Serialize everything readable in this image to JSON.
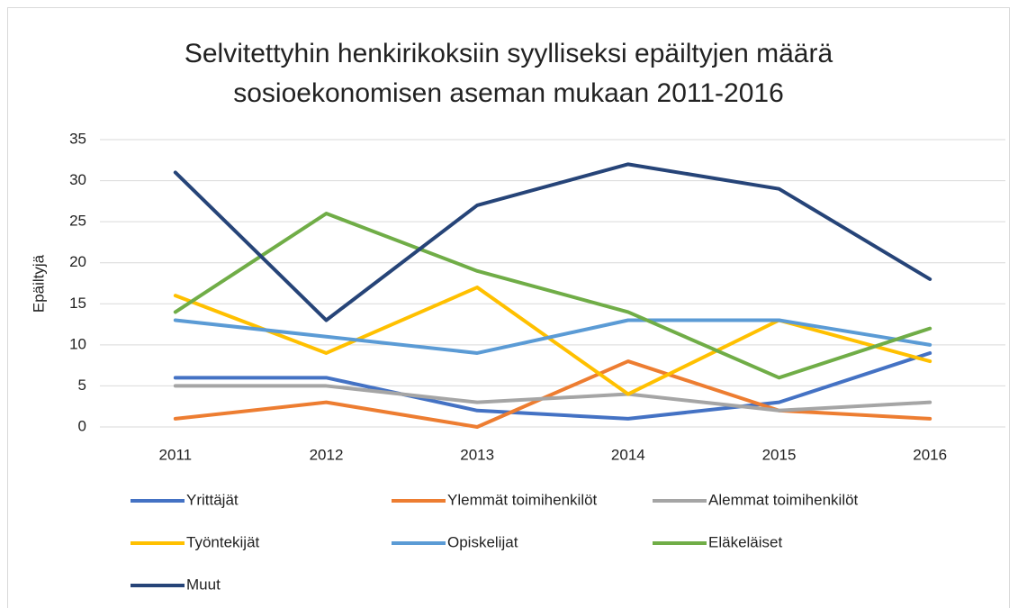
{
  "chart_data": {
    "type": "line",
    "title": "Selvitettyhin henkirikoksiin syylliseksi epäiltyjen määrä sosioekonomisen aseman mukaan 2011-2016",
    "y_label": "Epäiltyjä",
    "categories": [
      "2011",
      "2012",
      "2013",
      "2014",
      "2015",
      "2016"
    ],
    "series": [
      {
        "name": "Yrittäjät",
        "color": "#4472c4",
        "values": [
          6,
          6,
          2,
          1,
          3,
          9
        ]
      },
      {
        "name": "Ylemmät toimihenkilöt",
        "color": "#ed7d31",
        "values": [
          1,
          3,
          0,
          8,
          2,
          1
        ]
      },
      {
        "name": "Alemmat toimihenkilöt",
        "color": "#a5a5a5",
        "values": [
          5,
          5,
          3,
          4,
          2,
          3
        ]
      },
      {
        "name": "Työntekijät",
        "color": "#ffc000",
        "values": [
          16,
          9,
          17,
          4,
          13,
          8
        ]
      },
      {
        "name": "Opiskelijat",
        "color": "#5b9bd5",
        "values": [
          13,
          11,
          9,
          13,
          13,
          10
        ]
      },
      {
        "name": "Eläkeläiset",
        "color": "#70ad47",
        "values": [
          14,
          26,
          19,
          14,
          6,
          12
        ]
      },
      {
        "name": "Muut",
        "color": "#264478",
        "values": [
          31,
          13,
          27,
          32,
          29,
          18
        ]
      }
    ],
    "ylim": [
      0,
      35
    ],
    "yticks": [
      0,
      5,
      10,
      15,
      20,
      25,
      30,
      35
    ],
    "grid": true,
    "legend": "bottom"
  }
}
